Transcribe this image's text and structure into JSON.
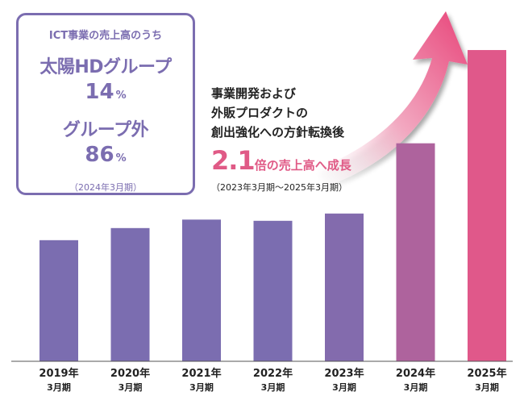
{
  "chart_data": {
    "type": "bar",
    "categories": [
      "2019年\n3月期",
      "2020年\n3月期",
      "2021年\n3月期",
      "2022年\n3月期",
      "2023年\n3月期",
      "2024年\n3月期",
      "2025年\n3月期"
    ],
    "values": [
      1.0,
      1.1,
      1.17,
      1.16,
      1.22,
      1.8,
      2.57
    ],
    "title": "",
    "xlabel": "",
    "ylabel": "",
    "ylim": [
      0,
      2.85
    ],
    "grid": false,
    "legend": "none",
    "colors": {
      "purple": "#7b6db0",
      "pink": "#e0588a"
    },
    "annotation": "arrow rising to the top-right"
  },
  "info_box": {
    "title": "ICT事業の売上高のうち",
    "label_group": "太陽HDグループ",
    "pct_group": "14",
    "label_external": "グループ外",
    "pct_external": "86",
    "pct_unit": "%",
    "note": "（2024年3月期）"
  },
  "headline": {
    "line1": "事業開発および",
    "line2": "外販プロダクトの",
    "line3": "創出強化への方針転換後"
  },
  "growth": {
    "multiplier": "2.1",
    "text": "倍の売上高へ成長",
    "period": "（2023年3月期〜2025年3月期）"
  },
  "colors": {
    "accent_purple": "#7b6db0",
    "accent_pink": "#e05a86",
    "text_dark": "#222222"
  }
}
